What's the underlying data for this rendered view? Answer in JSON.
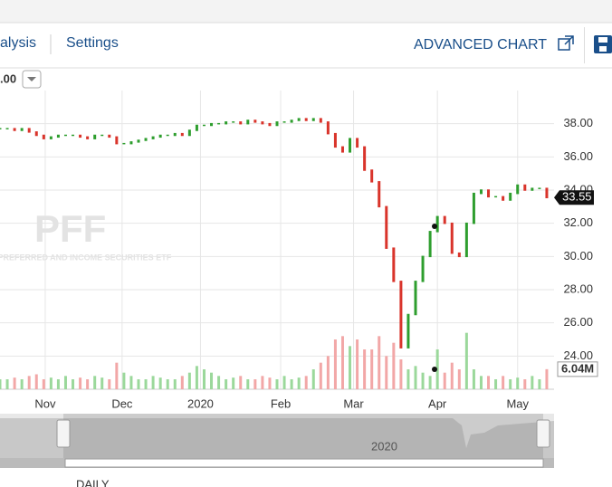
{
  "header": {
    "tabs": [
      "alysis",
      "Settings"
    ],
    "advanced_chart": "ADVANCED CHART"
  },
  "dropdown": ".00",
  "chart_data": {
    "type": "stock",
    "watermark_symbol": "PFF",
    "watermark_name": "ARES PREFERRED AND INCOME SECURITIES ETF",
    "navigator_label": "2020",
    "interval": "DAILY",
    "x": [
      0,
      2,
      4,
      6,
      8,
      10,
      12,
      14,
      16,
      18,
      20,
      22,
      24,
      26,
      28,
      30,
      32,
      34,
      36,
      38,
      40,
      42,
      44,
      46,
      48,
      50,
      52,
      54,
      56,
      58,
      60,
      62,
      64,
      66,
      68,
      70,
      72,
      74,
      76,
      78,
      80,
      82,
      84,
      86,
      88,
      90,
      92,
      94,
      96,
      98,
      100,
      102,
      104,
      106,
      108,
      110,
      112,
      114,
      116,
      118,
      120,
      122,
      124,
      126,
      128,
      130,
      132,
      134,
      136,
      138,
      140,
      142,
      144,
      146,
      148,
      150
    ],
    "xlim": [
      0,
      152
    ],
    "xticks": [
      {
        "value": 12.4,
        "label": "Nov"
      },
      {
        "value": 33.5,
        "label": "Dec"
      },
      {
        "value": 55,
        "label": "2020"
      },
      {
        "value": 77,
        "label": "Feb"
      },
      {
        "value": 97,
        "label": "Mar"
      },
      {
        "value": 120,
        "label": "Apr"
      },
      {
        "value": 142,
        "label": "May"
      }
    ],
    "ylim": [
      22,
      40
    ],
    "yticks": [
      {
        "value": 24,
        "label": "24.00"
      },
      {
        "value": 26,
        "label": "26.00"
      },
      {
        "value": 28,
        "label": "28.00"
      },
      {
        "value": 30,
        "label": "30.00"
      },
      {
        "value": 32,
        "label": "32.00"
      },
      {
        "value": 34,
        "label": "34.00"
      },
      {
        "value": 36,
        "label": "36.00"
      },
      {
        "value": 38,
        "label": "38.00"
      }
    ],
    "grid": true,
    "price": {
      "up_color": "#2e9e2e",
      "down_color": "#d9342b",
      "values": [
        37.7,
        37.7,
        37.6,
        37.7,
        37.5,
        37.3,
        37.1,
        37.2,
        37.3,
        37.3,
        37.3,
        37.2,
        37.1,
        37.3,
        37.3,
        37.2,
        36.8,
        36.8,
        36.9,
        37.0,
        37.1,
        37.2,
        37.3,
        37.3,
        37.4,
        37.3,
        37.6,
        37.9,
        37.9,
        38.0,
        38.0,
        38.1,
        38.1,
        38.0,
        38.2,
        38.1,
        38.0,
        37.9,
        38.1,
        38.1,
        38.2,
        38.3,
        38.2,
        38.3,
        38.1,
        37.4,
        36.6,
        36.3,
        37.1,
        36.6,
        35.2,
        34.5,
        33.0,
        30.5,
        28.5,
        24.5,
        26.5,
        28.5,
        30.0,
        31.5,
        32.4,
        32.0,
        30.2,
        30.0,
        32.0,
        33.8,
        34.0,
        33.6,
        33.6,
        33.4,
        33.8,
        34.3,
        34.0,
        34.1,
        34.1,
        33.55
      ]
    },
    "volume": {
      "up_color": "#9bd89b",
      "down_color": "#f2a7a7",
      "vlim": [
        0,
        90
      ],
      "values": [
        3,
        3,
        3.5,
        3,
        4,
        4.5,
        3,
        3.5,
        3,
        4,
        3,
        3.5,
        3,
        4,
        3.5,
        3,
        8,
        5,
        4,
        3,
        3,
        4,
        3.5,
        3,
        3,
        4,
        5,
        7,
        6,
        5,
        4,
        3,
        3.5,
        4,
        3,
        3,
        4,
        3.5,
        3,
        4,
        3,
        3.5,
        4,
        6,
        8,
        10,
        15,
        16,
        13,
        15,
        12,
        12,
        16,
        10,
        14,
        9,
        6,
        7,
        5,
        4,
        12,
        5,
        8,
        6,
        17,
        6,
        4,
        4,
        3,
        4,
        3,
        3.5,
        3,
        4,
        3,
        6.04
      ],
      "value_labels": [
        null,
        null,
        null,
        null,
        null,
        null,
        null,
        null,
        null,
        null,
        null,
        null,
        null,
        null,
        null,
        null,
        null,
        null,
        null,
        null,
        null,
        null,
        null,
        null,
        null,
        null,
        null,
        null,
        null,
        null,
        null,
        null,
        null,
        null,
        null,
        null,
        null,
        null,
        null,
        null,
        null,
        null,
        null,
        null,
        null,
        null,
        null,
        null,
        null,
        null,
        null,
        null,
        null,
        null,
        null,
        null,
        null,
        null,
        null,
        null,
        null,
        null,
        null,
        null,
        null,
        null,
        null,
        null,
        null,
        null,
        null,
        null,
        null,
        null,
        null,
        "6.04M"
      ]
    }
  }
}
